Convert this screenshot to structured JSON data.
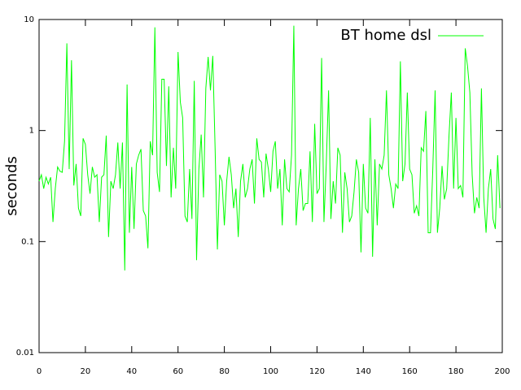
{
  "chart_data": {
    "type": "line",
    "y_label": "seconds",
    "log_y": true,
    "xlim": [
      0,
      200
    ],
    "xticks": [
      0,
      20,
      40,
      60,
      80,
      100,
      120,
      140,
      160,
      180,
      200
    ],
    "ylim": [
      0.01,
      10
    ],
    "yticks": [
      0.01,
      0.1,
      1,
      10
    ],
    "legend": "top-right",
    "x": [
      0,
      1,
      2,
      3,
      4,
      5,
      6,
      7,
      8,
      9,
      10,
      11,
      12,
      13,
      14,
      15,
      16,
      17,
      18,
      19,
      20,
      21,
      22,
      23,
      24,
      25,
      26,
      27,
      28,
      29,
      30,
      31,
      32,
      33,
      34,
      35,
      36,
      37,
      38,
      39,
      40,
      41,
      42,
      43,
      44,
      45,
      46,
      47,
      48,
      49,
      50,
      51,
      52,
      53,
      54,
      55,
      56,
      57,
      58,
      59,
      60,
      61,
      62,
      63,
      64,
      65,
      66,
      67,
      68,
      69,
      70,
      71,
      72,
      73,
      74,
      75,
      76,
      77,
      78,
      79,
      80,
      81,
      82,
      83,
      84,
      85,
      86,
      87,
      88,
      89,
      90,
      91,
      92,
      93,
      94,
      95,
      96,
      97,
      98,
      99,
      100,
      101,
      102,
      103,
      104,
      105,
      106,
      107,
      108,
      109,
      110,
      111,
      112,
      113,
      114,
      115,
      116,
      117,
      118,
      119,
      120,
      121,
      122,
      123,
      124,
      125,
      126,
      127,
      128,
      129,
      130,
      131,
      132,
      133,
      134,
      135,
      136,
      137,
      138,
      139,
      140,
      141,
      142,
      143,
      144,
      145,
      146,
      147,
      148,
      149,
      150,
      151,
      152,
      153,
      154,
      155,
      156,
      157,
      158,
      159,
      160,
      161,
      162,
      163,
      164,
      165,
      166,
      167,
      168,
      169,
      170,
      171,
      172,
      173,
      174,
      175,
      176,
      177,
      178,
      179,
      180,
      181,
      182,
      183,
      184,
      185,
      186,
      187,
      188,
      189,
      190,
      191,
      192,
      193,
      194,
      195,
      196,
      197,
      198,
      199
    ],
    "series": [
      {
        "name": "BT home dsl",
        "color": "#00ff00",
        "values": [
          0.35,
          0.4,
          0.3,
          0.38,
          0.33,
          0.38,
          0.15,
          0.3,
          0.47,
          0.43,
          0.42,
          0.8,
          6.1,
          0.45,
          4.3,
          0.32,
          0.5,
          0.2,
          0.17,
          0.85,
          0.75,
          0.4,
          0.27,
          0.47,
          0.38,
          0.4,
          0.15,
          0.38,
          0.4,
          0.9,
          0.11,
          0.35,
          0.3,
          0.4,
          0.78,
          0.3,
          0.78,
          0.055,
          2.6,
          0.12,
          0.47,
          0.13,
          0.5,
          0.6,
          0.68,
          0.19,
          0.17,
          0.087,
          0.8,
          0.6,
          8.5,
          0.42,
          0.28,
          2.9,
          2.9,
          0.48,
          2.5,
          0.25,
          0.7,
          0.3,
          5.1,
          1.8,
          1.3,
          0.17,
          0.15,
          0.45,
          0.16,
          2.8,
          0.068,
          0.45,
          0.92,
          0.25,
          2.4,
          4.6,
          2.3,
          4.7,
          0.7,
          0.085,
          0.4,
          0.35,
          0.14,
          0.35,
          0.58,
          0.4,
          0.2,
          0.3,
          0.11,
          0.35,
          0.5,
          0.25,
          0.3,
          0.45,
          0.55,
          0.22,
          0.85,
          0.55,
          0.52,
          0.25,
          0.62,
          0.45,
          0.28,
          0.65,
          0.8,
          0.3,
          0.45,
          0.14,
          0.55,
          0.3,
          0.28,
          0.6,
          8.8,
          0.14,
          0.3,
          0.45,
          0.19,
          0.22,
          0.22,
          0.65,
          0.15,
          1.15,
          0.27,
          0.3,
          4.5,
          0.15,
          0.5,
          2.3,
          0.16,
          0.35,
          0.22,
          0.7,
          0.6,
          0.12,
          0.42,
          0.3,
          0.15,
          0.17,
          0.28,
          0.55,
          0.42,
          0.08,
          0.5,
          0.2,
          0.18,
          1.3,
          0.073,
          0.55,
          0.14,
          0.5,
          0.45,
          0.6,
          2.3,
          0.4,
          0.3,
          0.2,
          0.33,
          0.3,
          4.2,
          0.35,
          0.5,
          2.2,
          0.45,
          0.4,
          0.18,
          0.21,
          0.17,
          0.7,
          0.65,
          1.5,
          0.12,
          0.12,
          0.45,
          2.3,
          0.12,
          0.2,
          0.48,
          0.24,
          0.3,
          0.9,
          2.2,
          0.3,
          1.3,
          0.3,
          0.32,
          0.25,
          5.5,
          3.8,
          2.2,
          0.4,
          0.18,
          0.25,
          0.2,
          2.4,
          0.25,
          0.12,
          0.3,
          0.45,
          0.16,
          0.13,
          0.6,
          0.2
        ]
      }
    ]
  }
}
